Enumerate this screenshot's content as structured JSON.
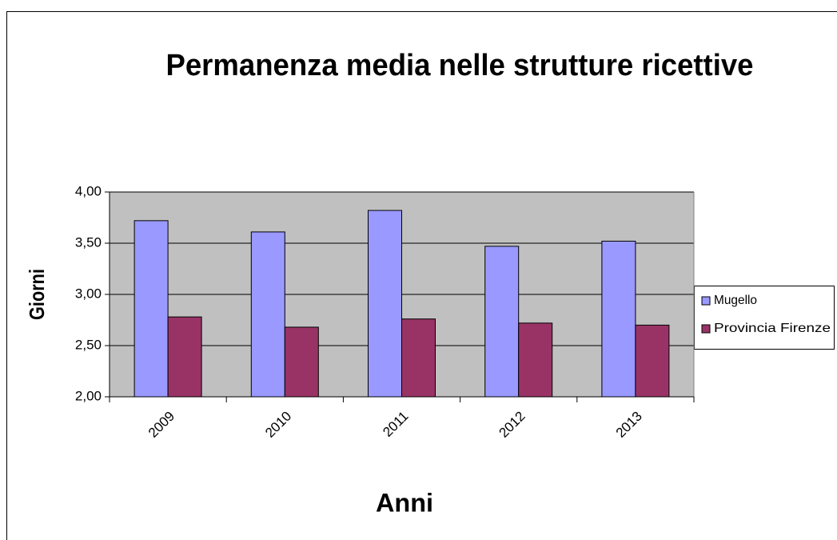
{
  "chart_data": {
    "type": "bar",
    "title": "Permanenza media nelle strutture ricettive",
    "x_label": "Anni",
    "y_label": "Giorni",
    "categories": [
      "2009",
      "2010",
      "2011",
      "2012",
      "2013"
    ],
    "series": [
      {
        "name": "Mugello",
        "color": "#9999ff",
        "values": [
          3.72,
          3.61,
          3.82,
          3.47,
          3.52
        ]
      },
      {
        "name": "Provincia Firenze",
        "color": "#993366",
        "values": [
          2.78,
          2.68,
          2.76,
          2.72,
          2.7
        ]
      }
    ],
    "ylim": [
      2,
      4
    ],
    "yticks": [
      {
        "value": 2,
        "label": "2,00"
      },
      {
        "value": 2.5,
        "label": "2,50"
      },
      {
        "value": 3,
        "label": "3,00"
      },
      {
        "value": 3.5,
        "label": "3,50"
      },
      {
        "value": 4,
        "label": "4,00"
      }
    ],
    "grid": true,
    "legend": "right"
  }
}
